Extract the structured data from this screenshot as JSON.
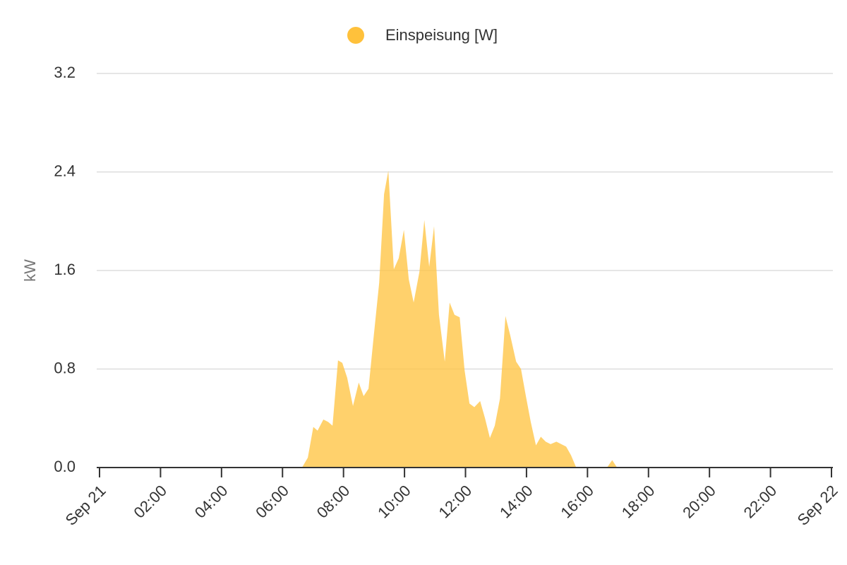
{
  "chart_data": {
    "type": "area",
    "legend_position": "top",
    "y_label": "kW",
    "x": [
      6.64,
      6.83,
      7.01,
      7.15,
      7.34,
      7.5,
      7.64,
      7.82,
      7.96,
      8.12,
      8.31,
      8.5,
      8.66,
      8.82,
      8.98,
      9.17,
      9.33,
      9.47,
      9.65,
      9.81,
      9.98,
      10.14,
      10.3,
      10.49,
      10.65,
      10.81,
      10.97,
      11.13,
      11.32,
      11.48,
      11.64,
      11.81,
      11.97,
      12.13,
      12.29,
      12.48,
      12.64,
      12.8,
      12.96,
      13.13,
      13.31,
      13.47,
      13.66,
      13.82,
      13.98,
      14.14,
      14.31,
      14.47,
      14.63,
      14.79,
      14.98,
      15.14,
      15.3,
      15.46,
      15.63,
      16.64,
      16.81,
      16.97
    ],
    "series": [
      {
        "name": "Einspeisung [W]",
        "color": "#ffc13b",
        "values": [
          0,
          0.08,
          0.33,
          0.3,
          0.39,
          0.37,
          0.34,
          0.87,
          0.85,
          0.73,
          0.5,
          0.69,
          0.58,
          0.64,
          1.04,
          1.5,
          2.22,
          2.41,
          1.61,
          1.7,
          1.93,
          1.53,
          1.34,
          1.59,
          2.01,
          1.63,
          1.96,
          1.24,
          0.86,
          1.34,
          1.24,
          1.22,
          0.79,
          0.52,
          0.49,
          0.54,
          0.4,
          0.24,
          0.34,
          0.56,
          1.23,
          1.07,
          0.86,
          0.8,
          0.58,
          0.37,
          0.18,
          0.25,
          0.21,
          0.19,
          0.21,
          0.19,
          0.17,
          0.1,
          0,
          0,
          0.06,
          0
        ]
      }
    ],
    "xlim": [
      0,
      24
    ],
    "xticks": [
      {
        "value": 0,
        "label": "Sep 21"
      },
      {
        "value": 2,
        "label": "02:00"
      },
      {
        "value": 4,
        "label": "04:00"
      },
      {
        "value": 6,
        "label": "06:00"
      },
      {
        "value": 8,
        "label": "08:00"
      },
      {
        "value": 10,
        "label": "10:00"
      },
      {
        "value": 12,
        "label": "12:00"
      },
      {
        "value": 14,
        "label": "14:00"
      },
      {
        "value": 16,
        "label": "16:00"
      },
      {
        "value": 18,
        "label": "18:00"
      },
      {
        "value": 20,
        "label": "20:00"
      },
      {
        "value": 22,
        "label": "22:00"
      },
      {
        "value": 24,
        "label": "Sep 22"
      }
    ],
    "ylim": [
      0,
      3.2
    ],
    "yticks": [
      {
        "value": 0,
        "label": "0.0"
      },
      0.8,
      1.6,
      2.4,
      3.2
    ],
    "grid": true
  }
}
